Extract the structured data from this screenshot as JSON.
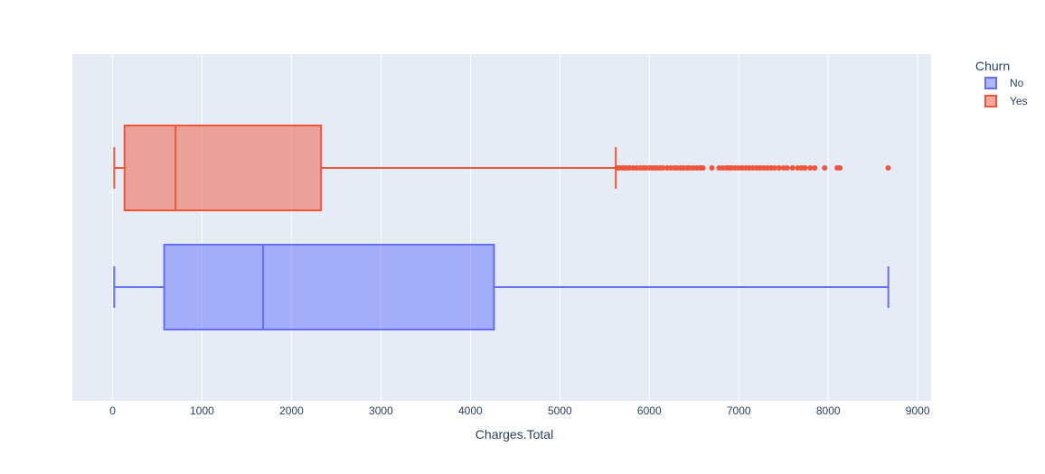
{
  "chart_data": {
    "type": "box",
    "orientation": "horizontal",
    "xlabel": "Charges.Total",
    "xlim": [
      -450,
      9150
    ],
    "x_ticks": [
      0,
      1000,
      2000,
      3000,
      4000,
      5000,
      6000,
      7000,
      8000,
      9000
    ],
    "grid": true,
    "legend": {
      "title": "Churn",
      "placement": "top-right",
      "items": [
        "No",
        "Yes"
      ]
    },
    "series": [
      {
        "name": "No",
        "color": "#636efa",
        "fill": "rgba(99,110,250,0.5)",
        "min": 18.8,
        "q1": 577,
        "median": 1683,
        "q3": 4264,
        "max": 8672,
        "outliers": []
      },
      {
        "name": "Yes",
        "color": "#ef553b",
        "fill": "rgba(239,85,59,0.5)",
        "min": 18.9,
        "q1": 134,
        "median": 704,
        "q3": 2331,
        "max": 5625,
        "outliers": [
          5640,
          5670,
          5700,
          5720,
          5750,
          5780,
          5820,
          5860,
          5900,
          5930,
          5960,
          6000,
          6030,
          6060,
          6090,
          6120,
          6150,
          6200,
          6240,
          6280,
          6310,
          6350,
          6380,
          6420,
          6450,
          6490,
          6530,
          6570,
          6600,
          6700,
          6780,
          6820,
          6860,
          6890,
          6920,
          6960,
          7000,
          7040,
          7080,
          7120,
          7160,
          7200,
          7240,
          7280,
          7320,
          7360,
          7400,
          7450,
          7500,
          7540,
          7600,
          7660,
          7700,
          7740,
          7800,
          7850,
          7960,
          8100,
          8130,
          8670
        ]
      }
    ]
  }
}
